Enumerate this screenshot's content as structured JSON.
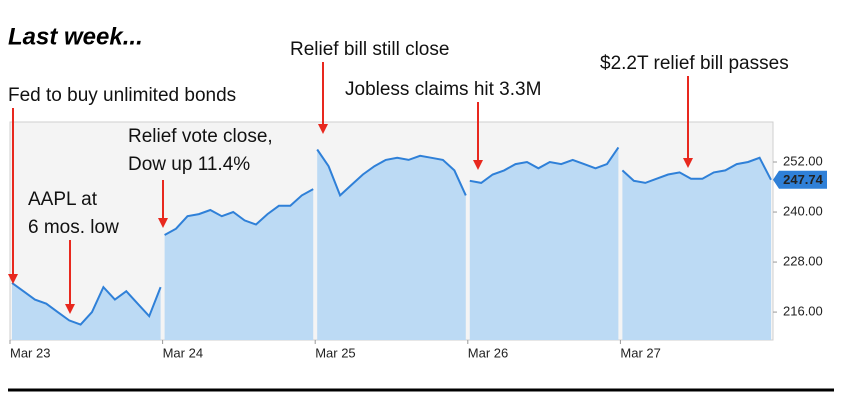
{
  "chart_data": {
    "type": "area",
    "title": "Last week...",
    "categories": [
      "Mar 23",
      null,
      null,
      null,
      null,
      null,
      null,
      null,
      null,
      null,
      null,
      null,
      null,
      null,
      "Mar 24",
      null,
      null,
      null,
      null,
      null,
      null,
      null,
      null,
      null,
      null,
      null,
      null,
      null,
      "Mar 25",
      null,
      null,
      null,
      null,
      null,
      null,
      null,
      null,
      null,
      null,
      null,
      null,
      null,
      "Mar 26",
      null,
      null,
      null,
      null,
      null,
      null,
      null,
      null,
      null,
      null,
      null,
      null,
      null,
      "Mar 27",
      null,
      null,
      null,
      null,
      null,
      null,
      null,
      null,
      null,
      null,
      null,
      null,
      null
    ],
    "values": [
      223,
      221,
      219,
      218,
      216,
      214,
      213,
      216,
      222,
      219,
      221,
      218,
      215,
      222,
      234.5,
      236,
      239,
      239.5,
      240.5,
      239,
      240,
      238,
      237,
      239.5,
      241.5,
      241.5,
      244,
      245.5,
      255,
      251,
      244,
      246.5,
      249,
      251,
      252.5,
      253,
      252.5,
      253.5,
      253,
      252.5,
      250,
      244,
      247.5,
      247,
      249,
      250,
      251.5,
      252,
      250.5,
      252,
      251.5,
      252.5,
      251.5,
      250.5,
      251.5,
      255.5,
      250,
      247.5,
      247,
      248,
      249,
      249.5,
      248,
      248,
      249.5,
      250,
      251.5,
      252,
      253,
      247.74
    ],
    "color": "#2f80d8",
    "fill_color": "#bcdaf4",
    "ylim": [
      209.3,
      261.6
    ],
    "yticks": [
      {
        "value": 216,
        "label": "216.00"
      },
      {
        "value": 228,
        "label": "228.00"
      },
      {
        "value": 240,
        "label": "240.00"
      },
      {
        "value": 252,
        "label": "252.00"
      }
    ],
    "annotations": [
      [
        "Fed to buy unlimited bonds"
      ],
      [
        "AAPL at",
        "6 mos. low"
      ],
      [
        "Relief vote close,",
        "Dow up 11.4%"
      ],
      [
        "Relief bill still close"
      ],
      [
        "Jobless claims hit 3.3M"
      ],
      [
        "$2.2T relief bill passes"
      ]
    ]
  }
}
